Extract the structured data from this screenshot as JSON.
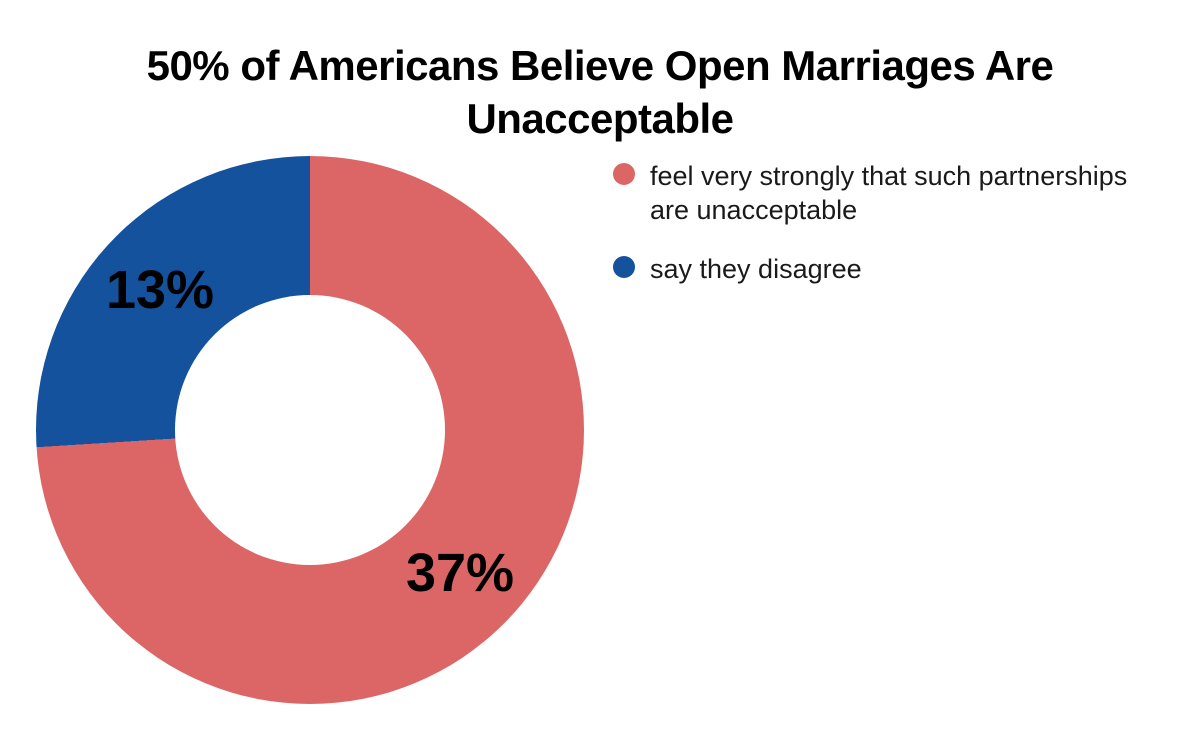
{
  "header": {
    "line1": "50% of Americans Believe Open Marriages Are",
    "line2": "Unacceptable"
  },
  "chart_data": {
    "type": "pie",
    "subtype": "donut",
    "title": "50% of Americans Believe Open Marriages Are Unacceptable",
    "slices": [
      {
        "label": "feel very strongly that such partnerships are unacceptable",
        "value": 37,
        "display": "37%",
        "color": "#DC6666"
      },
      {
        "label": "say they disagree",
        "value": 13,
        "display": "13%",
        "color": "#14529E"
      }
    ],
    "start_angle_deg": 0,
    "direction": "clockwise",
    "inner_radius_ratio": 0.49,
    "slice_label_color": "#000000",
    "background": "#FFFFFF",
    "legend_position": "right"
  }
}
